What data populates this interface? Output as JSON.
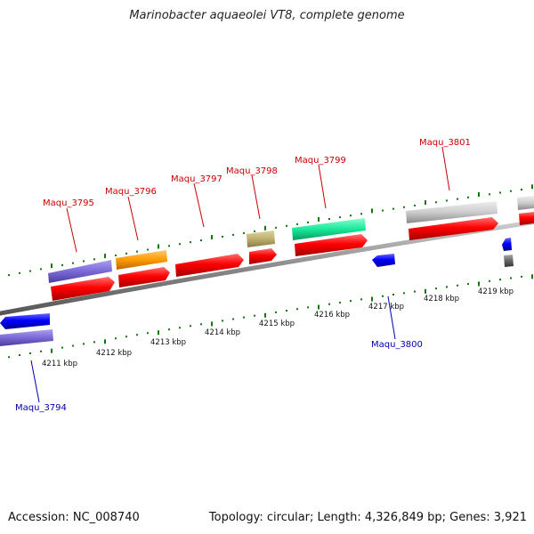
{
  "title": "Marinobacter aquaeolei VT8, complete genome",
  "footer": {
    "accession": "Accession: NC_008740",
    "summary": "Topology: circular; Length: 4,326,849 bp; Genes: 3,921"
  },
  "colors": {
    "cds_forward": "#ff0000",
    "cds_reverse": "#0000ff",
    "label_forward": "#cc0000",
    "label_reverse": "#0000aa",
    "tick": "#117711",
    "backbone": "#888888"
  },
  "scale_labels": [
    "4211 kbp",
    "4212 kbp",
    "4213 kbp",
    "4214 kbp",
    "4215 kbp",
    "4216 kbp",
    "4217 kbp",
    "4218 kbp",
    "4219 kbp"
  ],
  "gene_labels": {
    "maqu_3794": "Maqu_3794",
    "maqu_3795": "Maqu_3795",
    "maqu_3796": "Maqu_3796",
    "maqu_3797": "Maqu_3797",
    "maqu_3798": "Maqu_3798",
    "maqu_3799": "Maqu_3799",
    "maqu_3800": "Maqu_3800",
    "maqu_3801": "Maqu_3801"
  }
}
